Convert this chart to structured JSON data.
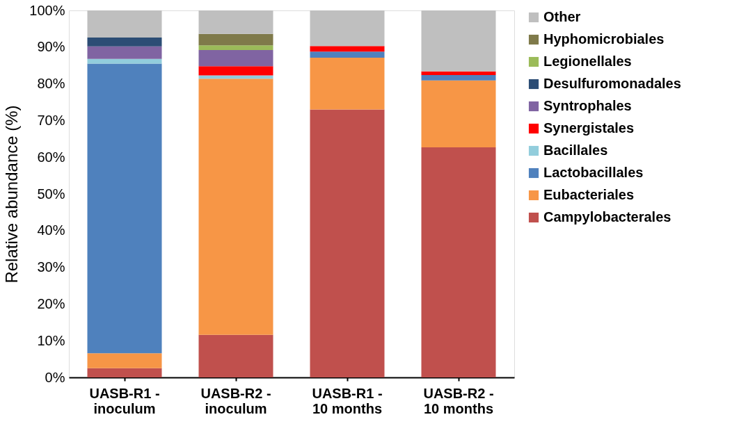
{
  "chart_data": {
    "type": "bar",
    "stacked": true,
    "ylabel": "Relative abundance (%)",
    "categories": [
      "UASB-R1 -\ninoculum",
      "UASB-R2 -\ninoculum",
      "UASB-R1 -\n10 months",
      "UASB-R2 -\n10 months"
    ],
    "series": [
      {
        "name": "Campylobacterales",
        "color": "#c0504d",
        "values": [
          2.5,
          11.6,
          73.0,
          62.7
        ]
      },
      {
        "name": "Eubacteriales",
        "color": "#f79646",
        "values": [
          4.1,
          69.8,
          14.1,
          18.2
        ]
      },
      {
        "name": "Lactobacillales",
        "color": "#4f81bd",
        "values": [
          78.9,
          null,
          1.7,
          1.5
        ]
      },
      {
        "name": "Bacillales",
        "color": "#92cddc",
        "values": [
          1.3,
          0.9,
          null,
          null
        ]
      },
      {
        "name": "Synergistales",
        "color": "#ff0000",
        "values": [
          null,
          2.5,
          1.5,
          1.0
        ]
      },
      {
        "name": "Syntrophales",
        "color": "#8064a2",
        "values": [
          3.4,
          4.4,
          null,
          null
        ]
      },
      {
        "name": "Desulfuromonadales",
        "color": "#2c4d75",
        "values": [
          2.4,
          null,
          null,
          null
        ]
      },
      {
        "name": "Legionellales",
        "color": "#9bbb59",
        "values": [
          null,
          1.3,
          null,
          null
        ]
      },
      {
        "name": "Hyphomicrobiales",
        "color": "#7f7a4a",
        "values": [
          null,
          3.1,
          null,
          null
        ]
      },
      {
        "name": "Other",
        "color": "#bfbfbf",
        "values": [
          7.4,
          6.4,
          9.7,
          16.6
        ]
      }
    ],
    "ylim": [
      0,
      100
    ],
    "yticks": [
      {
        "value": 0,
        "label": "0%"
      },
      {
        "value": 10,
        "label": "10%"
      },
      {
        "value": 20,
        "label": "20%"
      },
      {
        "value": 30,
        "label": "30%"
      },
      {
        "value": 40,
        "label": "40%"
      },
      {
        "value": 50,
        "label": "50%"
      },
      {
        "value": 60,
        "label": "60%"
      },
      {
        "value": 70,
        "label": "70%"
      },
      {
        "value": 80,
        "label": "80%"
      },
      {
        "value": 90,
        "label": "90%"
      },
      {
        "value": 100,
        "label": "100%"
      }
    ],
    "grid": false,
    "legend": "right"
  }
}
